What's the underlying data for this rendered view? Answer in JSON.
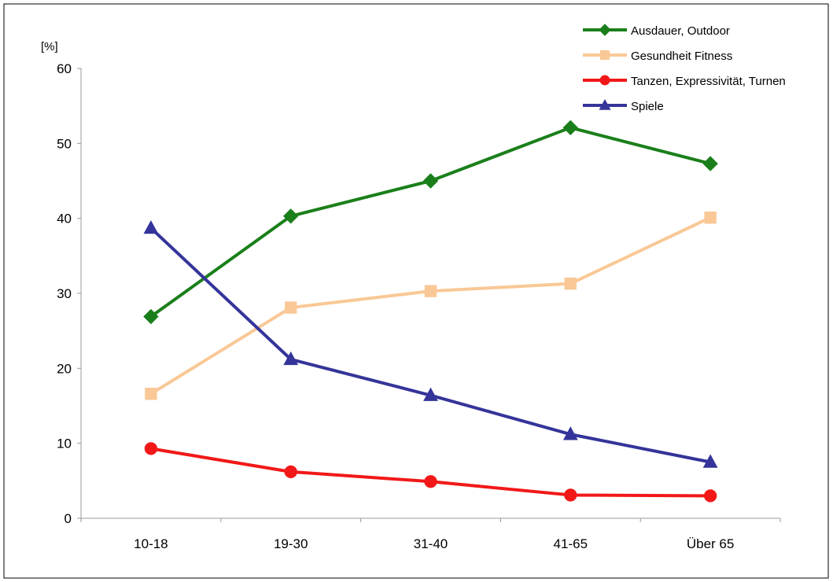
{
  "chart_data": {
    "type": "line",
    "title": "",
    "xlabel": "",
    "ylabel": "[%]",
    "categories": [
      "10-18",
      "19-30",
      "31-40",
      "41-65",
      "Über 65"
    ],
    "ylim": [
      0,
      60
    ],
    "yticks": [
      0,
      10,
      20,
      30,
      40,
      50,
      60
    ],
    "grid": false,
    "legend_position": "top-right",
    "series": [
      {
        "name": "Ausdauer, Outdoor",
        "color": "#1a7f1a",
        "marker": "diamond",
        "values": [
          26.9,
          40.3,
          45.0,
          52.1,
          47.3
        ]
      },
      {
        "name": "Gesundheit Fitness",
        "color": "#f9c896",
        "marker": "square",
        "values": [
          16.6,
          28.1,
          30.3,
          31.3,
          40.1
        ]
      },
      {
        "name": "Tanzen, Expressivität, Turnen",
        "color": "#f21818",
        "marker": "circle",
        "values": [
          9.3,
          6.2,
          4.9,
          3.1,
          3.0
        ]
      },
      {
        "name": "Spiele",
        "color": "#34349a",
        "marker": "triangle",
        "values": [
          38.7,
          21.2,
          16.4,
          11.2,
          7.5
        ]
      }
    ]
  }
}
